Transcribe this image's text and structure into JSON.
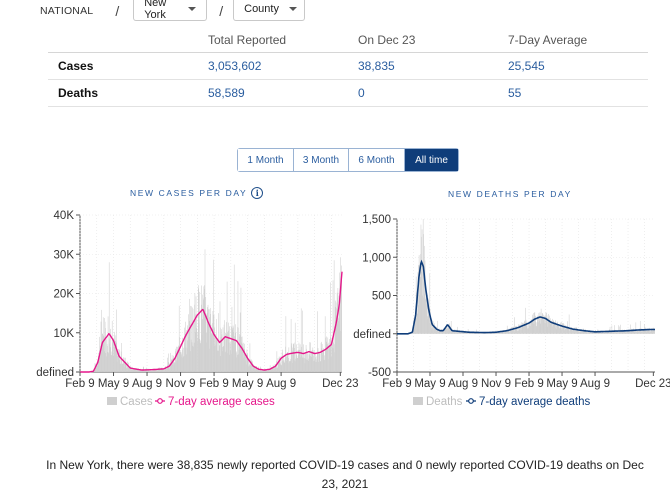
{
  "breadcrumb": {
    "national": "NATIONAL",
    "separator": "/",
    "state": "New York",
    "county": "County"
  },
  "summary": {
    "headers": [
      "",
      "Total Reported",
      "On Dec 23",
      "7-Day Average"
    ],
    "rows": [
      {
        "label": "Cases",
        "total": "3,053,602",
        "on_day": "38,835",
        "avg": "25,545"
      },
      {
        "label": "Deaths",
        "total": "58,589",
        "on_day": "0",
        "avg": "55"
      }
    ]
  },
  "ranges": {
    "options": [
      "1 Month",
      "3 Month",
      "6 Month",
      "All time"
    ],
    "selected": "All time"
  },
  "charts": {
    "cases_title": "NEW CASES PER DAY",
    "deaths_title": "NEW DEATHS PER DAY",
    "info_icon": "i"
  },
  "colors": {
    "cases_line": "#e5178b",
    "deaths_line": "#0f3d7a",
    "bars": "#cfcfcf",
    "link": "#2a5d9f"
  },
  "chart_data": [
    {
      "type": "line",
      "title": "NEW CASES PER DAY",
      "x_ticks": [
        "Feb 9",
        "May 9",
        "Aug 9",
        "Nov 9",
        "Feb 9",
        "May 9",
        "Aug 9",
        "Dec 23"
      ],
      "y_ticks": [
        "defined",
        "10K",
        "20K",
        "30K",
        "40K"
      ],
      "ylim": [
        0,
        40000
      ],
      "legend": [
        "Cases",
        "7-day average cases"
      ],
      "series": [
        {
          "name": "7-day average cases",
          "x_month_index": [
            0,
            0.8,
            1.2,
            1.6,
            2.0,
            2.6,
            3.0,
            3.5,
            4.5,
            5.5,
            6.5,
            7.5,
            8.0,
            8.5,
            9.0,
            9.5,
            10.0,
            10.5,
            11.0,
            11.5,
            12.0,
            12.5,
            13.0,
            13.5,
            14.0,
            14.5,
            15.0,
            15.5,
            16.0,
            16.5,
            17.0,
            17.5,
            18.0,
            18.5,
            19.0,
            19.5,
            20.0,
            20.5,
            21.0,
            21.5,
            22.0,
            22.5,
            22.9,
            23.2,
            23.45
          ],
          "values": [
            0,
            0,
            200,
            2500,
            7500,
            9800,
            8000,
            4000,
            1000,
            500,
            600,
            800,
            1500,
            3500,
            6500,
            9500,
            12000,
            14500,
            16000,
            12500,
            9500,
            7500,
            9000,
            8500,
            8000,
            6000,
            3500,
            1500,
            700,
            500,
            700,
            1500,
            3500,
            4500,
            4800,
            5000,
            4700,
            5200,
            4700,
            5000,
            5800,
            7000,
            12000,
            17000,
            25545
          ]
        }
      ]
    },
    {
      "type": "line",
      "title": "NEW DEATHS PER DAY",
      "x_ticks": [
        "Feb 9",
        "May 9",
        "Aug 9",
        "Nov 9",
        "Feb 9",
        "May 9",
        "Aug 9",
        "Dec 23"
      ],
      "y_ticks": [
        "-500",
        "defined",
        "500",
        "1,000",
        "1,500"
      ],
      "ylim": [
        -500,
        1500
      ],
      "legend": [
        "Deaths",
        "7-day average deaths"
      ],
      "series": [
        {
          "name": "7-day average deaths",
          "x_month_index": [
            0,
            1.0,
            1.4,
            1.7,
            2.0,
            2.2,
            2.4,
            2.6,
            2.9,
            3.2,
            3.6,
            3.9,
            4.2,
            4.6,
            5.0,
            6.5,
            8.0,
            9.0,
            10.0,
            11.0,
            12.0,
            12.5,
            13.0,
            13.5,
            14.0,
            15.0,
            16.0,
            17.0,
            18.0,
            19.0,
            20.0,
            21.0,
            22.0,
            23.0,
            23.45
          ],
          "values": [
            0,
            0,
            20,
            250,
            750,
            950,
            880,
            600,
            300,
            120,
            60,
            40,
            40,
            120,
            40,
            20,
            15,
            20,
            40,
            80,
            140,
            190,
            220,
            200,
            150,
            100,
            60,
            40,
            25,
            30,
            35,
            40,
            50,
            55,
            55
          ]
        }
      ]
    }
  ],
  "footer": {
    "text": "In New York, there were 38,835 newly reported COVID-19 cases and 0 newly reported COVID-19 deaths on Dec 23, 2021"
  }
}
